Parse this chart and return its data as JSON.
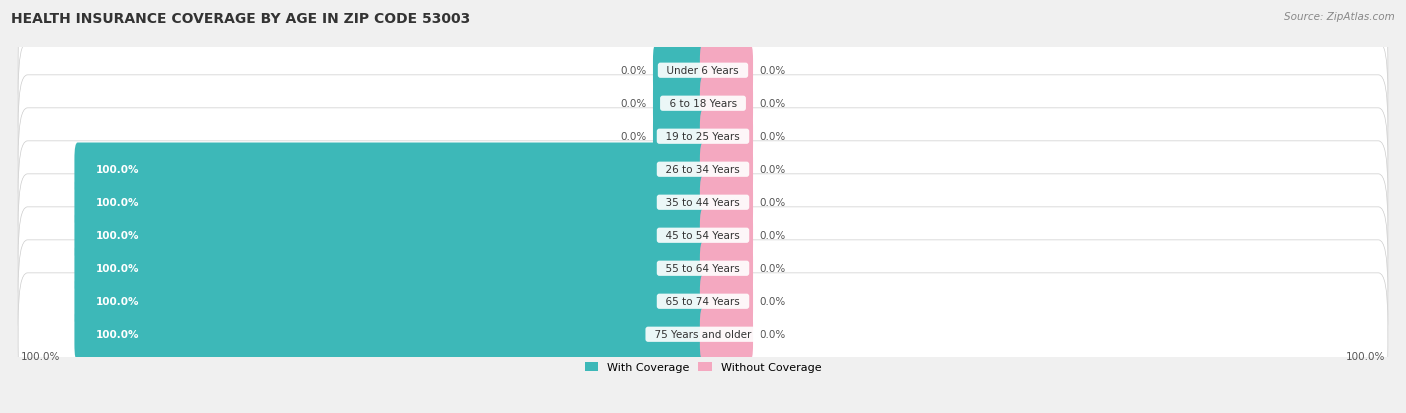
{
  "title": "HEALTH INSURANCE COVERAGE BY AGE IN ZIP CODE 53003",
  "source": "Source: ZipAtlas.com",
  "categories": [
    "Under 6 Years",
    "6 to 18 Years",
    "19 to 25 Years",
    "26 to 34 Years",
    "35 to 44 Years",
    "45 to 54 Years",
    "55 to 64 Years",
    "65 to 74 Years",
    "75 Years and older"
  ],
  "with_coverage": [
    0.0,
    0.0,
    0.0,
    100.0,
    100.0,
    100.0,
    100.0,
    100.0,
    100.0
  ],
  "without_coverage": [
    0.0,
    0.0,
    0.0,
    0.0,
    0.0,
    0.0,
    0.0,
    0.0,
    0.0
  ],
  "color_with": "#3DB8B8",
  "color_without": "#F4A8C0",
  "row_bg_color": "#FFFFFF",
  "row_edge_color": "#CCCCCC",
  "background_color": "#F0F0F0",
  "title_fontsize": 10,
  "label_fontsize": 7.5,
  "cat_fontsize": 7.5,
  "legend_fontsize": 8,
  "bar_height": 0.62,
  "max_val": 100.0,
  "small_bar_pct": 7.5,
  "x_left_label": "100.0%",
  "x_right_label": "100.0%"
}
